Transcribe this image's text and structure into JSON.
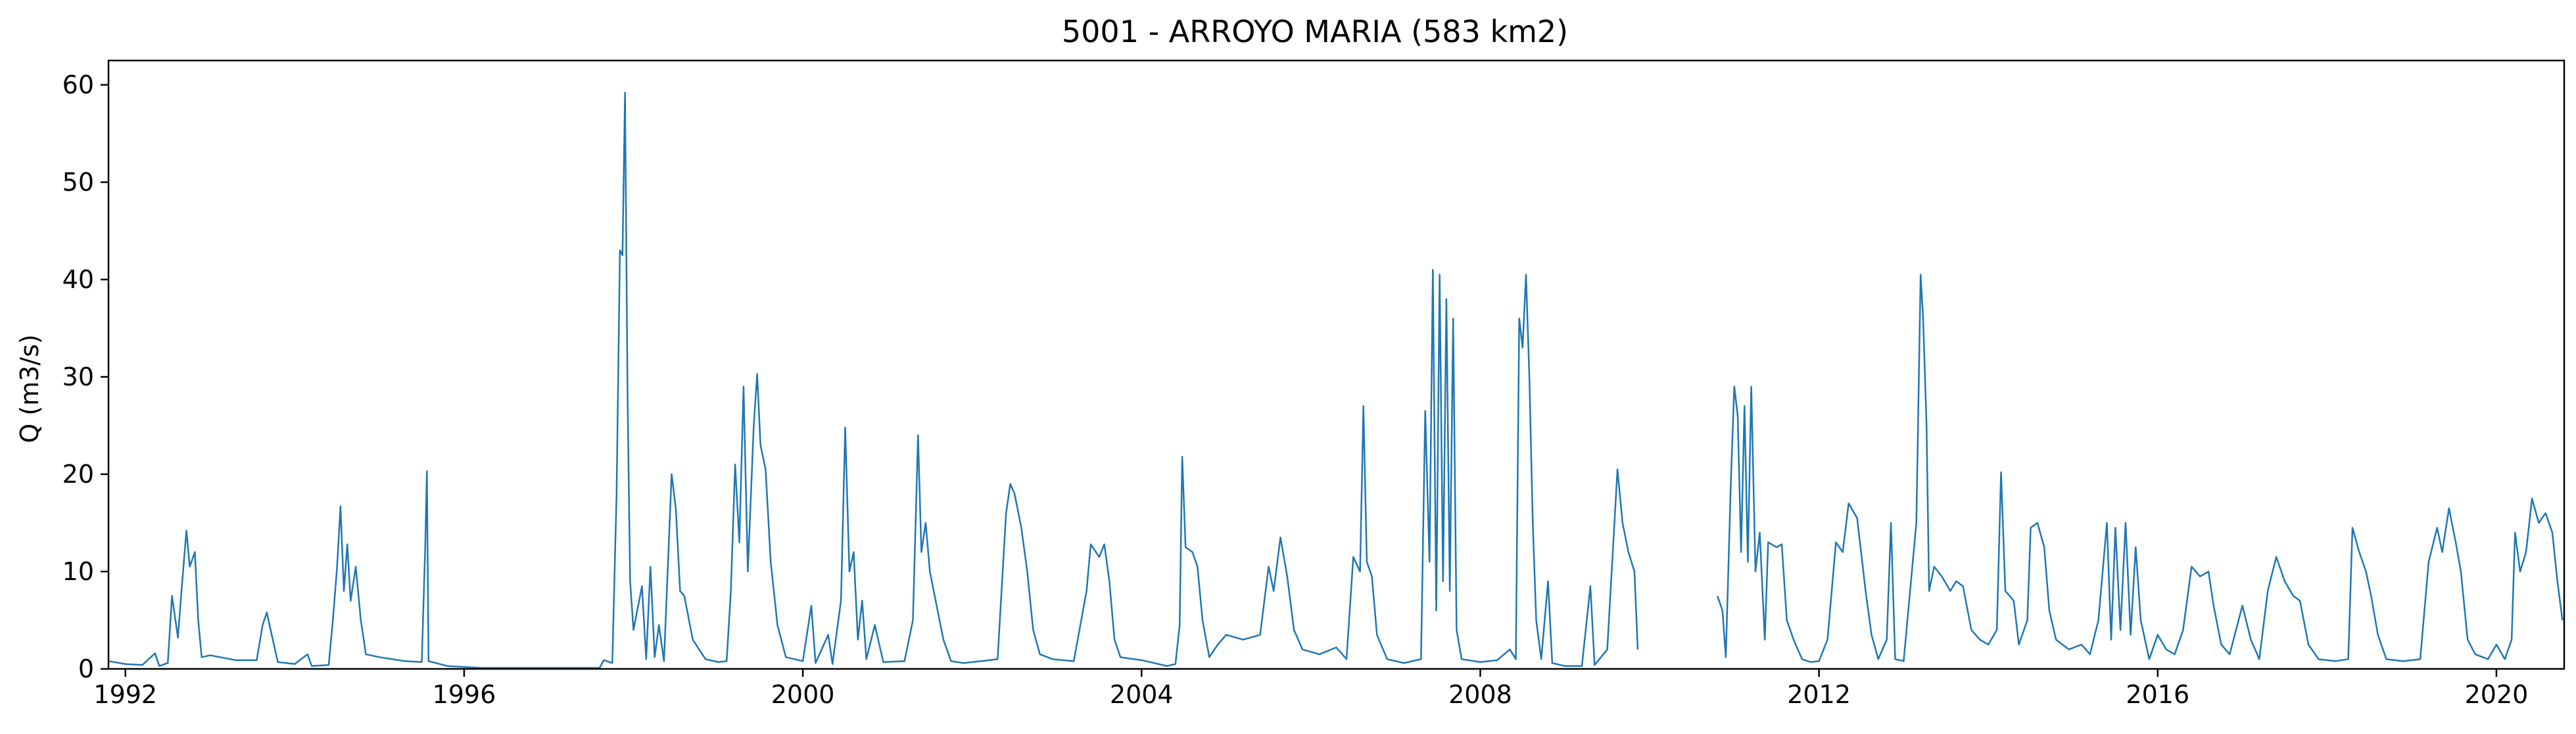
{
  "chart_data": {
    "type": "line",
    "title": "5001 - ARROYO MARIA (583 km2)",
    "xlabel": "",
    "ylabel": "Q (m3/s)",
    "xlim": [
      1991.8,
      2020.8
    ],
    "ylim": [
      0,
      62.5
    ],
    "x_ticks": [
      1992,
      1996,
      2000,
      2004,
      2008,
      2012,
      2016,
      2020
    ],
    "y_ticks": [
      0,
      10,
      20,
      30,
      40,
      50,
      60
    ],
    "grid": false,
    "line_color": "#1f77b4",
    "segments": [
      [
        [
          1991.8,
          0.8
        ],
        [
          1992.0,
          0.5
        ],
        [
          1992.2,
          0.4
        ],
        [
          1992.35,
          1.6
        ],
        [
          1992.4,
          0.3
        ],
        [
          1992.5,
          0.6
        ],
        [
          1992.55,
          7.5
        ],
        [
          1992.62,
          3.2
        ],
        [
          1992.66,
          7.8
        ],
        [
          1992.72,
          14.2
        ],
        [
          1992.76,
          10.5
        ],
        [
          1992.82,
          12.0
        ],
        [
          1992.86,
          5.0
        ],
        [
          1992.9,
          1.2
        ],
        [
          1993.0,
          1.4
        ],
        [
          1993.3,
          0.9
        ],
        [
          1993.55,
          0.9
        ],
        [
          1993.62,
          4.5
        ],
        [
          1993.67,
          5.8
        ],
        [
          1993.72,
          3.8
        ],
        [
          1993.8,
          0.7
        ],
        [
          1994.0,
          0.5
        ],
        [
          1994.15,
          1.5
        ],
        [
          1994.2,
          0.3
        ],
        [
          1994.4,
          0.4
        ],
        [
          1994.45,
          5.0
        ],
        [
          1994.5,
          10.5
        ],
        [
          1994.54,
          16.7
        ],
        [
          1994.58,
          8.0
        ],
        [
          1994.62,
          12.8
        ],
        [
          1994.66,
          7.0
        ],
        [
          1994.72,
          10.5
        ],
        [
          1994.78,
          5.0
        ],
        [
          1994.84,
          1.5
        ],
        [
          1995.0,
          1.2
        ],
        [
          1995.3,
          0.8
        ],
        [
          1995.5,
          0.7
        ],
        [
          1995.54,
          12.5
        ],
        [
          1995.56,
          20.3
        ],
        [
          1995.58,
          0.8
        ],
        [
          1995.8,
          0.3
        ],
        [
          1996.2,
          0.1
        ],
        [
          1997.0,
          0.1
        ],
        [
          1997.6,
          0.1
        ],
        [
          1997.65,
          0.9
        ],
        [
          1997.75,
          0.6
        ],
        [
          1997.8,
          18.0
        ],
        [
          1997.84,
          43.0
        ],
        [
          1997.87,
          42.5
        ],
        [
          1997.9,
          59.2
        ],
        [
          1997.93,
          28.0
        ],
        [
          1997.96,
          9.0
        ],
        [
          1998.0,
          4.0
        ],
        [
          1998.1,
          8.5
        ],
        [
          1998.15,
          1.0
        ],
        [
          1998.2,
          10.5
        ],
        [
          1998.25,
          1.2
        ],
        [
          1998.3,
          4.5
        ],
        [
          1998.36,
          0.8
        ],
        [
          1998.45,
          20.0
        ],
        [
          1998.5,
          16.5
        ],
        [
          1998.55,
          8.0
        ],
        [
          1998.6,
          7.5
        ],
        [
          1998.7,
          3.0
        ],
        [
          1998.85,
          1.0
        ],
        [
          1999.0,
          0.7
        ],
        [
          1999.1,
          0.8
        ],
        [
          1999.15,
          8.0
        ],
        [
          1999.2,
          21.0
        ],
        [
          1999.25,
          13.0
        ],
        [
          1999.3,
          29.0
        ],
        [
          1999.35,
          10.0
        ],
        [
          1999.42,
          25.0
        ],
        [
          1999.46,
          30.3
        ],
        [
          1999.5,
          23.0
        ],
        [
          1999.56,
          20.5
        ],
        [
          1999.62,
          11.0
        ],
        [
          1999.7,
          4.5
        ],
        [
          1999.8,
          1.2
        ],
        [
          2000.0,
          0.8
        ],
        [
          2000.1,
          6.5
        ],
        [
          2000.15,
          0.6
        ],
        [
          2000.3,
          3.5
        ],
        [
          2000.35,
          0.5
        ],
        [
          2000.45,
          7.0
        ],
        [
          2000.5,
          24.8
        ],
        [
          2000.55,
          10.0
        ],
        [
          2000.6,
          12.0
        ],
        [
          2000.65,
          3.0
        ],
        [
          2000.7,
          7.0
        ],
        [
          2000.75,
          1.0
        ],
        [
          2000.85,
          4.5
        ],
        [
          2000.95,
          0.7
        ],
        [
          2001.2,
          0.8
        ],
        [
          2001.3,
          5.0
        ],
        [
          2001.36,
          24.0
        ],
        [
          2001.4,
          12.0
        ],
        [
          2001.45,
          15.0
        ],
        [
          2001.5,
          10.0
        ],
        [
          2001.58,
          6.5
        ],
        [
          2001.66,
          3.0
        ],
        [
          2001.75,
          0.8
        ],
        [
          2001.9,
          0.6
        ],
        [
          2002.1,
          0.8
        ],
        [
          2002.3,
          1.0
        ],
        [
          2002.4,
          16.0
        ],
        [
          2002.45,
          19.0
        ],
        [
          2002.5,
          18.0
        ],
        [
          2002.58,
          14.5
        ],
        [
          2002.65,
          10.0
        ],
        [
          2002.72,
          4.0
        ],
        [
          2002.8,
          1.5
        ],
        [
          2002.95,
          1.0
        ],
        [
          2003.2,
          0.8
        ],
        [
          2003.35,
          8.0
        ],
        [
          2003.4,
          12.8
        ],
        [
          2003.5,
          11.5
        ],
        [
          2003.56,
          12.8
        ],
        [
          2003.62,
          9.0
        ],
        [
          2003.68,
          3.0
        ],
        [
          2003.75,
          1.2
        ],
        [
          2004.0,
          0.9
        ],
        [
          2004.3,
          0.3
        ],
        [
          2004.4,
          0.5
        ],
        [
          2004.45,
          4.5
        ],
        [
          2004.48,
          21.8
        ],
        [
          2004.52,
          12.5
        ],
        [
          2004.6,
          12.0
        ],
        [
          2004.66,
          10.5
        ],
        [
          2004.72,
          5.0
        ],
        [
          2004.8,
          1.2
        ],
        [
          2004.9,
          2.5
        ],
        [
          2005.0,
          3.5
        ],
        [
          2005.2,
          3.0
        ],
        [
          2005.4,
          3.5
        ],
        [
          2005.5,
          10.5
        ],
        [
          2005.56,
          8.0
        ],
        [
          2005.64,
          13.5
        ],
        [
          2005.72,
          9.5
        ],
        [
          2005.8,
          4.0
        ],
        [
          2005.9,
          2.0
        ],
        [
          2006.1,
          1.5
        ],
        [
          2006.3,
          2.2
        ],
        [
          2006.42,
          1.0
        ],
        [
          2006.5,
          11.5
        ],
        [
          2006.58,
          10.0
        ],
        [
          2006.62,
          27.0
        ],
        [
          2006.66,
          11.0
        ],
        [
          2006.72,
          9.5
        ],
        [
          2006.78,
          3.5
        ],
        [
          2006.9,
          1.0
        ],
        [
          2007.1,
          0.6
        ],
        [
          2007.3,
          1.0
        ],
        [
          2007.35,
          26.5
        ],
        [
          2007.4,
          11.0
        ],
        [
          2007.44,
          41.0
        ],
        [
          2007.48,
          6.0
        ],
        [
          2007.52,
          40.5
        ],
        [
          2007.56,
          9.0
        ],
        [
          2007.6,
          38.0
        ],
        [
          2007.64,
          8.0
        ],
        [
          2007.68,
          36.0
        ],
        [
          2007.72,
          4.0
        ],
        [
          2007.78,
          1.0
        ],
        [
          2008.0,
          0.7
        ],
        [
          2008.2,
          0.9
        ],
        [
          2008.35,
          2.0
        ],
        [
          2008.42,
          1.0
        ],
        [
          2008.46,
          36.0
        ],
        [
          2008.5,
          33.0
        ],
        [
          2008.54,
          40.5
        ],
        [
          2008.58,
          30.0
        ],
        [
          2008.62,
          15.0
        ],
        [
          2008.66,
          5.0
        ],
        [
          2008.72,
          1.0
        ],
        [
          2008.8,
          9.0
        ],
        [
          2008.85,
          0.6
        ],
        [
          2009.0,
          0.3
        ],
        [
          2009.2,
          0.3
        ],
        [
          2009.3,
          8.5
        ],
        [
          2009.35,
          0.4
        ],
        [
          2009.5,
          2.0
        ],
        [
          2009.62,
          20.5
        ],
        [
          2009.68,
          15.0
        ],
        [
          2009.75,
          12.0
        ],
        [
          2009.82,
          10.0
        ],
        [
          2009.86,
          2.0
        ]
      ],
      [
        [
          2010.8,
          7.5
        ],
        [
          2010.86,
          6.0
        ],
        [
          2010.9,
          1.2
        ],
        [
          2010.96,
          19.5
        ],
        [
          2011.0,
          29.0
        ],
        [
          2011.04,
          26.0
        ],
        [
          2011.08,
          12.0
        ],
        [
          2011.12,
          27.0
        ],
        [
          2011.16,
          11.0
        ],
        [
          2011.2,
          29.0
        ],
        [
          2011.25,
          10.0
        ],
        [
          2011.3,
          14.0
        ],
        [
          2011.36,
          3.0
        ],
        [
          2011.4,
          13.0
        ],
        [
          2011.5,
          12.5
        ],
        [
          2011.56,
          12.8
        ],
        [
          2011.62,
          5.0
        ],
        [
          2011.7,
          3.0
        ],
        [
          2011.8,
          1.0
        ],
        [
          2011.9,
          0.7
        ],
        [
          2012.0,
          0.8
        ],
        [
          2012.1,
          3.0
        ],
        [
          2012.2,
          13.0
        ],
        [
          2012.28,
          12.0
        ],
        [
          2012.35,
          17.0
        ],
        [
          2012.45,
          15.5
        ],
        [
          2012.55,
          8.0
        ],
        [
          2012.62,
          3.5
        ],
        [
          2012.7,
          1.0
        ],
        [
          2012.8,
          3.0
        ],
        [
          2012.85,
          15.0
        ],
        [
          2012.9,
          1.0
        ],
        [
          2013.0,
          0.8
        ],
        [
          2013.15,
          15.0
        ],
        [
          2013.2,
          40.5
        ],
        [
          2013.23,
          36.0
        ],
        [
          2013.27,
          25.0
        ],
        [
          2013.3,
          8.0
        ],
        [
          2013.36,
          10.5
        ],
        [
          2013.45,
          9.5
        ],
        [
          2013.55,
          8.0
        ],
        [
          2013.62,
          9.0
        ],
        [
          2013.7,
          8.5
        ],
        [
          2013.8,
          4.0
        ],
        [
          2013.9,
          3.0
        ],
        [
          2014.0,
          2.5
        ],
        [
          2014.1,
          4.0
        ],
        [
          2014.15,
          20.2
        ],
        [
          2014.2,
          8.0
        ],
        [
          2014.3,
          7.0
        ],
        [
          2014.36,
          2.5
        ],
        [
          2014.46,
          5.0
        ],
        [
          2014.5,
          14.5
        ],
        [
          2014.58,
          15.0
        ],
        [
          2014.66,
          12.5
        ],
        [
          2014.72,
          6.0
        ],
        [
          2014.8,
          3.0
        ],
        [
          2014.95,
          2.0
        ],
        [
          2015.1,
          2.5
        ],
        [
          2015.2,
          1.5
        ],
        [
          2015.3,
          5.0
        ],
        [
          2015.4,
          15.0
        ],
        [
          2015.45,
          3.0
        ],
        [
          2015.5,
          14.5
        ],
        [
          2015.56,
          4.0
        ],
        [
          2015.62,
          15.0
        ],
        [
          2015.68,
          3.5
        ],
        [
          2015.74,
          12.5
        ],
        [
          2015.8,
          5.0
        ],
        [
          2015.9,
          1.0
        ],
        [
          2016.0,
          3.5
        ],
        [
          2016.1,
          2.0
        ],
        [
          2016.2,
          1.5
        ],
        [
          2016.3,
          4.0
        ],
        [
          2016.4,
          10.5
        ],
        [
          2016.5,
          9.5
        ],
        [
          2016.6,
          10.0
        ],
        [
          2016.66,
          6.5
        ],
        [
          2016.75,
          2.5
        ],
        [
          2016.85,
          1.5
        ],
        [
          2017.0,
          6.5
        ],
        [
          2017.1,
          3.0
        ],
        [
          2017.2,
          1.0
        ],
        [
          2017.3,
          8.0
        ],
        [
          2017.4,
          11.5
        ],
        [
          2017.5,
          9.0
        ],
        [
          2017.6,
          7.5
        ],
        [
          2017.68,
          7.0
        ],
        [
          2017.78,
          2.5
        ],
        [
          2017.9,
          1.0
        ],
        [
          2018.1,
          0.8
        ],
        [
          2018.25,
          1.0
        ],
        [
          2018.3,
          14.5
        ],
        [
          2018.38,
          12.0
        ],
        [
          2018.46,
          10.0
        ],
        [
          2018.52,
          7.5
        ],
        [
          2018.6,
          3.5
        ],
        [
          2018.7,
          1.0
        ],
        [
          2018.9,
          0.8
        ],
        [
          2019.1,
          1.0
        ],
        [
          2019.2,
          11.0
        ],
        [
          2019.3,
          14.5
        ],
        [
          2019.36,
          12.0
        ],
        [
          2019.44,
          16.5
        ],
        [
          2019.52,
          13.0
        ],
        [
          2019.58,
          10.0
        ],
        [
          2019.66,
          3.0
        ],
        [
          2019.75,
          1.5
        ],
        [
          2019.9,
          1.0
        ],
        [
          2020.0,
          2.5
        ],
        [
          2020.1,
          1.0
        ],
        [
          2020.18,
          3.0
        ],
        [
          2020.22,
          14.0
        ],
        [
          2020.28,
          10.0
        ],
        [
          2020.35,
          12.0
        ],
        [
          2020.42,
          17.5
        ],
        [
          2020.5,
          15.0
        ],
        [
          2020.58,
          16.0
        ],
        [
          2020.66,
          14.0
        ],
        [
          2020.72,
          9.0
        ],
        [
          2020.78,
          5.0
        ]
      ]
    ]
  }
}
